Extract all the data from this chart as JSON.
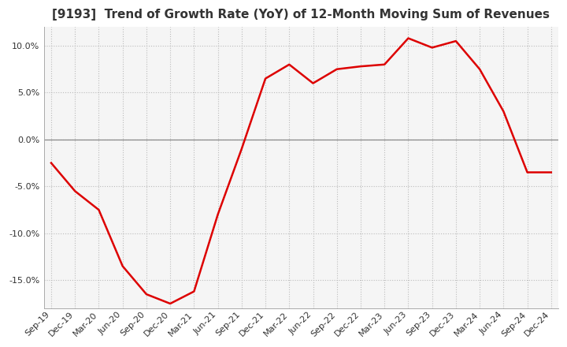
{
  "title": "[9193]  Trend of Growth Rate (YoY) of 12-Month Moving Sum of Revenues",
  "x_labels": [
    "Sep-19",
    "Dec-19",
    "Mar-20",
    "Jun-20",
    "Sep-20",
    "Dec-20",
    "Mar-21",
    "Jun-21",
    "Sep-21",
    "Dec-21",
    "Mar-22",
    "Jun-22",
    "Sep-22",
    "Dec-22",
    "Mar-23",
    "Jun-23",
    "Sep-23",
    "Dec-23",
    "Mar-24",
    "Jun-24",
    "Sep-24",
    "Dec-24"
  ],
  "y_values": [
    -2.5,
    -5.5,
    -7.5,
    -13.5,
    -16.5,
    -17.5,
    -16.2,
    -8.0,
    -1.0,
    6.5,
    8.0,
    6.0,
    7.5,
    7.8,
    8.0,
    10.8,
    9.8,
    10.5,
    7.5,
    3.0,
    -3.5,
    -3.5
  ],
  "line_color": "#dd0000",
  "ylim_min": -18,
  "ylim_max": 12,
  "yticks": [
    -15.0,
    -10.0,
    -5.0,
    0.0,
    5.0,
    10.0
  ],
  "grid_color": "#bbbbbb",
  "zero_line_color": "#888888",
  "background_color": "#ffffff",
  "plot_bg_color": "#f5f5f5",
  "title_fontsize": 11,
  "tick_fontsize": 8,
  "title_color": "#333333"
}
